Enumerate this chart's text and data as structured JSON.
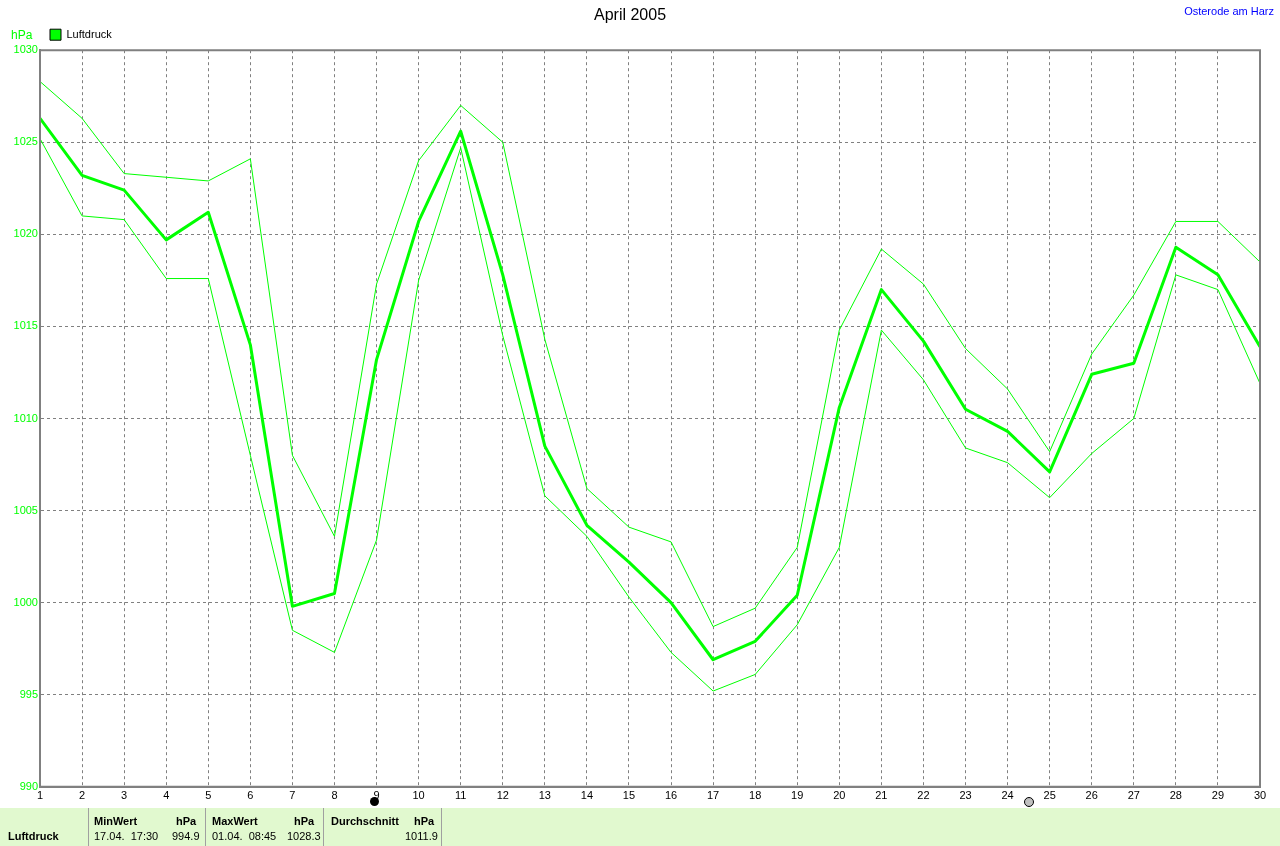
{
  "chart_data": {
    "type": "line",
    "title": "April 2005",
    "ylabel": "hPa",
    "x": [
      1,
      2,
      3,
      4,
      5,
      6,
      7,
      8,
      9,
      10,
      11,
      12,
      13,
      14,
      15,
      16,
      17,
      18,
      19,
      20,
      21,
      22,
      23,
      24,
      25,
      26,
      27,
      28,
      29,
      30
    ],
    "series": [
      {
        "name": "Luftdruck",
        "color": "#00ff00",
        "values": [
          1026.3,
          1023.2,
          1022.4,
          1019.7,
          1021.2,
          1014.0,
          999.8,
          1000.5,
          1013.2,
          1020.7,
          1025.6,
          1017.8,
          1008.5,
          1004.2,
          1002.2,
          1000.0,
          996.9,
          997.9,
          1000.4,
          1010.6,
          1017.0,
          1014.2,
          1010.5,
          1009.3,
          1007.1,
          1012.4,
          1013.0,
          1019.3,
          1017.8,
          1013.9
        ]
      },
      {
        "color": "#00ff00",
        "values": [
          1028.3,
          1026.3,
          1023.3,
          1023.1,
          1022.9,
          1024.1,
          1008.0,
          1003.6,
          1017.3,
          1024.0,
          1027.0,
          1025.0,
          1014.3,
          1006.2,
          1004.1,
          1003.3,
          998.7,
          999.7,
          1003.0,
          1014.8,
          1019.2,
          1017.3,
          1013.8,
          1011.6,
          1008.2,
          1013.5,
          1016.7,
          1020.7,
          1020.7,
          1018.5
        ]
      },
      {
        "color": "#00ff00",
        "values": [
          1025.2,
          1021.0,
          1020.8,
          1017.6,
          1017.6,
          1008.0,
          998.5,
          997.3,
          1003.4,
          1017.5,
          1024.7,
          1014.5,
          1005.8,
          1003.6,
          1000.3,
          997.3,
          995.2,
          996.1,
          998.8,
          1003.0,
          1014.8,
          1012.1,
          1008.4,
          1007.6,
          1005.7,
          1008.1,
          1010.0,
          1017.8,
          1017.0,
          1011.9
        ]
      }
    ],
    "xlim": [
      1,
      30
    ],
    "xticks": [
      1,
      2,
      3,
      4,
      5,
      6,
      7,
      8,
      9,
      10,
      11,
      12,
      13,
      14,
      15,
      16,
      17,
      18,
      19,
      20,
      21,
      22,
      23,
      24,
      25,
      26,
      27,
      28,
      29,
      30
    ],
    "ylim": [
      990,
      1030
    ],
    "yticks": [
      990,
      995,
      1000,
      1005,
      1010,
      1015,
      1020,
      1025,
      1030
    ],
    "grid": true,
    "legend": "top left",
    "marker": "none",
    "line_style": "solid",
    "annotations": [
      "Osterode am Harz",
      "Luftdruck",
      "MinWert",
      "hPa",
      "17.04.  17:30",
      "994.9",
      "MaxWert",
      "hPa",
      "01.04.  08:45",
      "1028.3",
      "Durchschnitt",
      "hPa",
      "1011.9"
    ]
  }
}
